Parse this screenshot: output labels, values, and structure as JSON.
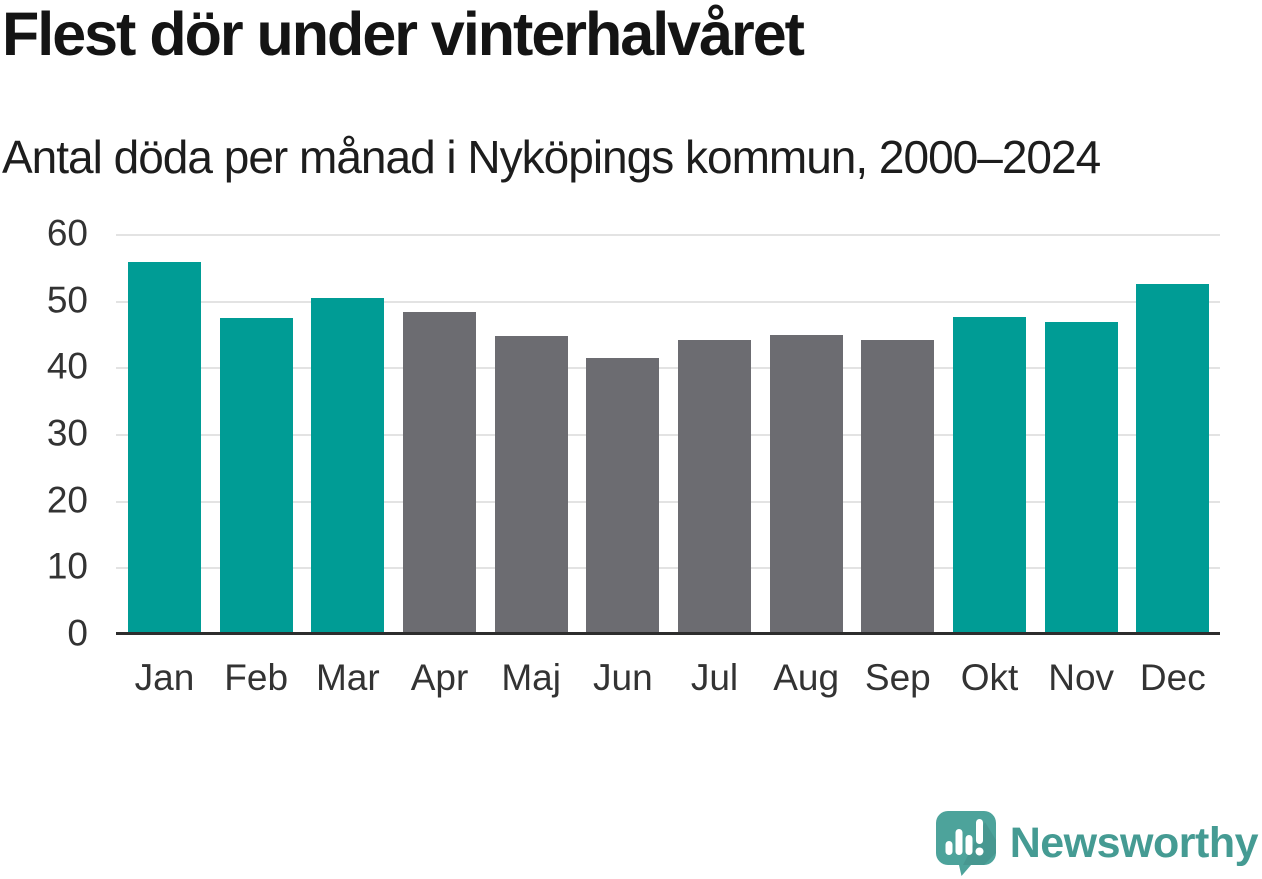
{
  "chart_data": {
    "type": "bar",
    "title": "Flest dör under vinterhalvåret",
    "subtitle": "Antal döda per månad i Nyköpings kommun, 2000–2024",
    "categories": [
      "Jan",
      "Feb",
      "Mar",
      "Apr",
      "Maj",
      "Jun",
      "Jul",
      "Aug",
      "Sep",
      "Okt",
      "Nov",
      "Dec"
    ],
    "values": [
      56.0,
      47.6,
      50.5,
      48.4,
      44.9,
      41.6,
      44.2,
      45.0,
      44.3,
      47.7,
      47.0,
      52.7
    ],
    "highlighted": [
      true,
      true,
      true,
      false,
      false,
      false,
      false,
      false,
      false,
      true,
      true,
      true
    ],
    "ylim": [
      0,
      60
    ],
    "yticks": [
      0,
      10,
      20,
      30,
      40,
      50,
      60
    ],
    "grid": true,
    "legend": "none",
    "colors": {
      "highlight": "#009c95",
      "default": "#6c6c71",
      "grid": "#e3e3e3",
      "axis_line": "#2d2d2d",
      "tick_label": "#333333",
      "title_text": "#141414",
      "subtitle_text": "#1d1d1d"
    }
  },
  "branding": {
    "logo_text": "Newsworthy",
    "logo_text_color": "#459b93",
    "logo_icon": "newsworthy-speech-bubble-bar-chart-icon",
    "logo_icon_color": "#4da39b"
  }
}
